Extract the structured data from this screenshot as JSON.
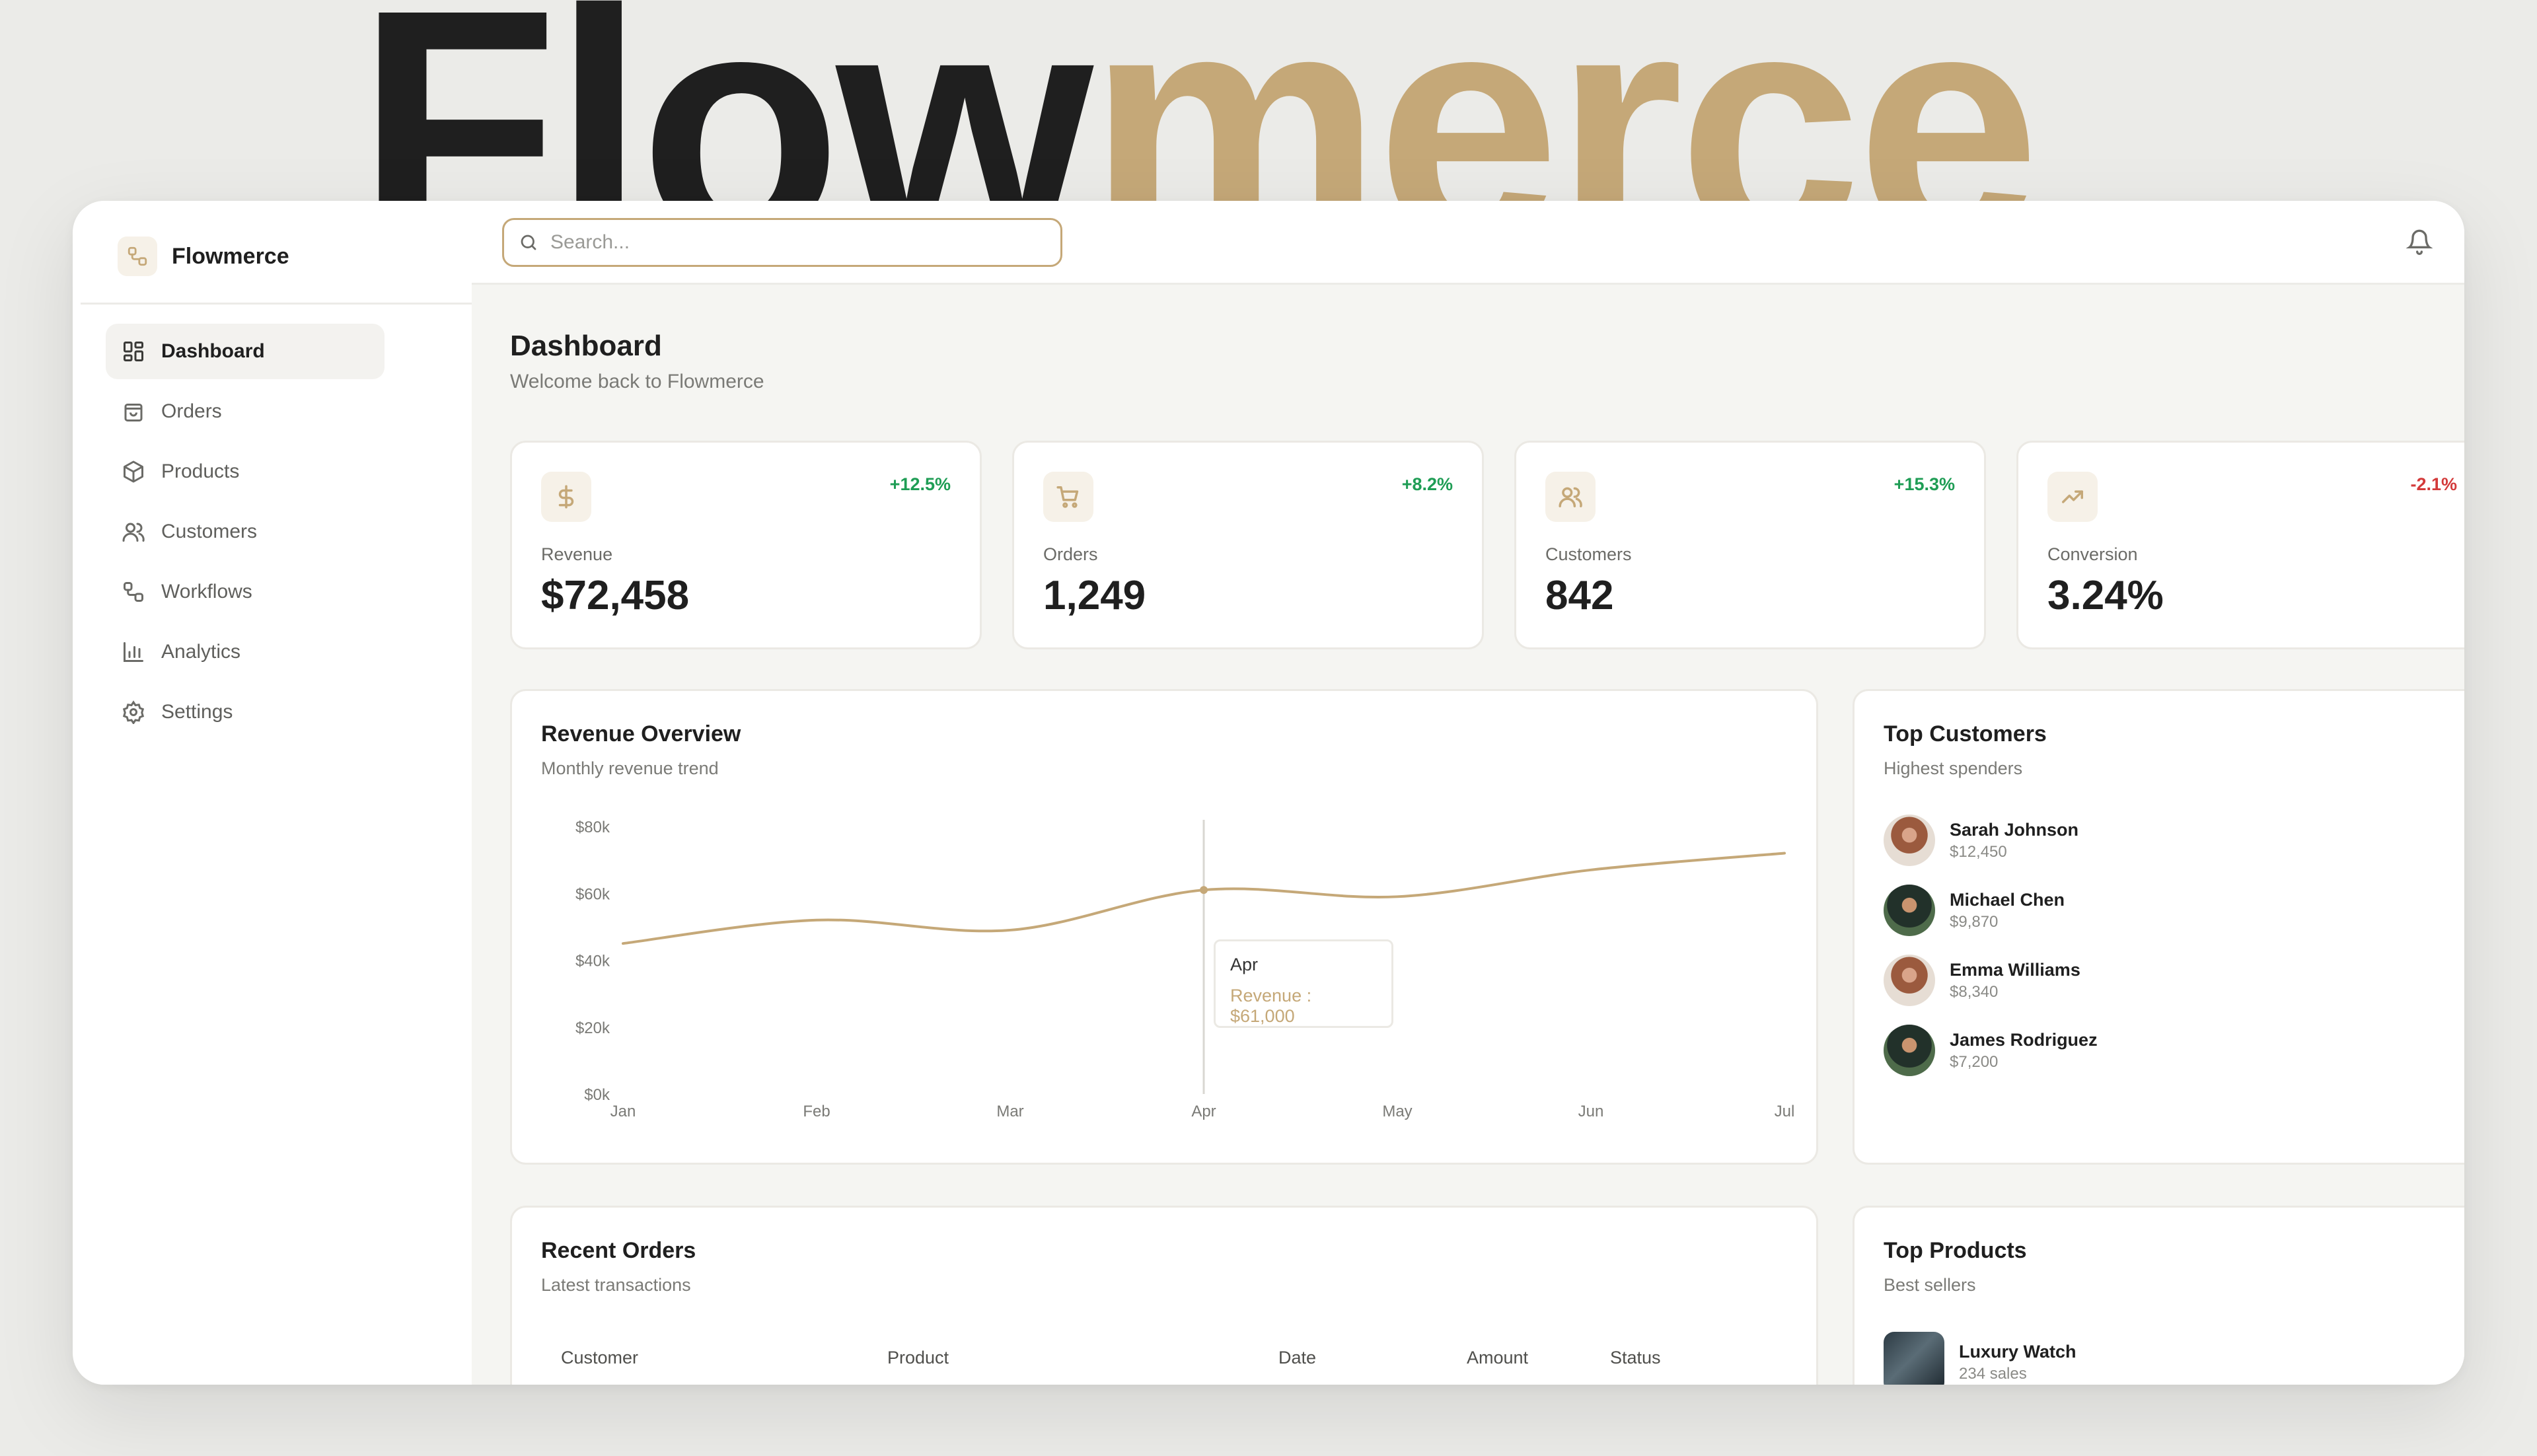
{
  "hero": {
    "part1": "Flow",
    "part2": "merce"
  },
  "brand": {
    "name": "Flowmerce"
  },
  "nav": [
    {
      "label": "Dashboard",
      "icon": "dashboard-icon",
      "active": true
    },
    {
      "label": "Orders",
      "icon": "bag-icon"
    },
    {
      "label": "Products",
      "icon": "box-icon"
    },
    {
      "label": "Customers",
      "icon": "users-icon"
    },
    {
      "label": "Workflows",
      "icon": "workflow-icon"
    },
    {
      "label": "Analytics",
      "icon": "bar-chart-icon"
    },
    {
      "label": "Settings",
      "icon": "gear-icon"
    }
  ],
  "search": {
    "placeholder": "Search...",
    "value": ""
  },
  "page": {
    "title": "Dashboard",
    "subtitle": "Welcome back to Flowmerce"
  },
  "stats": [
    {
      "label": "Revenue",
      "value": "$72,458",
      "delta": "+12.5%",
      "trend": "up",
      "icon": "dollar-icon"
    },
    {
      "label": "Orders",
      "value": "1,249",
      "delta": "+8.2%",
      "trend": "up",
      "icon": "cart-icon"
    },
    {
      "label": "Customers",
      "value": "842",
      "delta": "+15.3%",
      "trend": "up",
      "icon": "users-icon"
    },
    {
      "label": "Conversion",
      "value": "3.24%",
      "delta": "-2.1%",
      "trend": "down",
      "icon": "trending-up-icon"
    }
  ],
  "revenue_overview": {
    "title": "Revenue Overview",
    "subtitle": "Monthly revenue trend",
    "tooltip": {
      "label": "Apr",
      "text": "Revenue : $61,000"
    }
  },
  "chart_data": {
    "type": "line",
    "categories": [
      "Jan",
      "Feb",
      "Mar",
      "Apr",
      "May",
      "Jun",
      "Jul"
    ],
    "series": [
      {
        "name": "Revenue",
        "values": [
          45000,
          52000,
          49000,
          61000,
          59000,
          67000,
          72000
        ]
      }
    ],
    "ylim": [
      0,
      80000
    ],
    "yticks": [
      "$0k",
      "$20k",
      "$40k",
      "$60k",
      "$80k"
    ],
    "ytick_values": [
      0,
      20000,
      40000,
      60000,
      80000
    ],
    "color": "#c5a878",
    "highlight": "Apr"
  },
  "top_customers": {
    "title": "Top Customers",
    "subtitle": "Highest spenders",
    "items": [
      {
        "name": "Sarah Johnson",
        "amount": "$12,450"
      },
      {
        "name": "Michael Chen",
        "amount": "$9,870"
      },
      {
        "name": "Emma Williams",
        "amount": "$8,340"
      },
      {
        "name": "James Rodriguez",
        "amount": "$7,200"
      }
    ]
  },
  "recent_orders": {
    "title": "Recent Orders",
    "subtitle": "Latest transactions",
    "columns": [
      "Customer",
      "Product",
      "Date",
      "Amount",
      "Status"
    ]
  },
  "top_products": {
    "title": "Top Products",
    "subtitle": "Best sellers",
    "items": [
      {
        "name": "Luxury Watch",
        "sales": "234 sales"
      }
    ]
  },
  "colors": {
    "accent": "#c5a878",
    "positive": "#1f9d55",
    "negative": "#d33a3a"
  }
}
